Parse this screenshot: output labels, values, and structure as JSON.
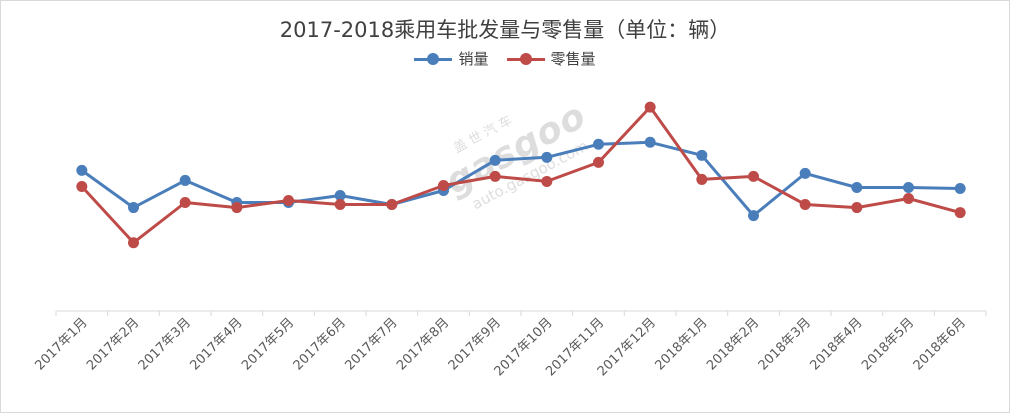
{
  "chart_data": {
    "type": "line",
    "title": "2017-2018乘用车批发量与零售量（单位：辆）",
    "categories": [
      "2017年1月",
      "2017年2月",
      "2017年3月",
      "2017年4月",
      "2017年5月",
      "2017年6月",
      "2017年7月",
      "2017年8月",
      "2017年9月",
      "2017年10月",
      "2017年11月",
      "2017年12月",
      "2018年1月",
      "2018年2月",
      "2018年3月",
      "2018年4月",
      "2018年5月",
      "2018年6月"
    ],
    "series": [
      {
        "name": "销量",
        "color": "#4a7ebb",
        "values": [
          140,
          103,
          130,
          108,
          108,
          115,
          106,
          120,
          150,
          153,
          166,
          168,
          155,
          95,
          137,
          123,
          123,
          122
        ]
      },
      {
        "name": "零售量",
        "color": "#be4b48",
        "values": [
          124,
          68,
          108,
          103,
          110,
          106,
          106,
          125,
          134,
          129,
          148,
          203,
          131,
          134,
          106,
          103,
          112,
          98
        ]
      }
    ],
    "ylim": [
      0,
      230
    ],
    "grid": false,
    "legend_position": "top"
  },
  "watermark": {
    "cn": "盖世汽车",
    "logo": "gasgoo",
    "url": "auto.gasgoo.com"
  }
}
